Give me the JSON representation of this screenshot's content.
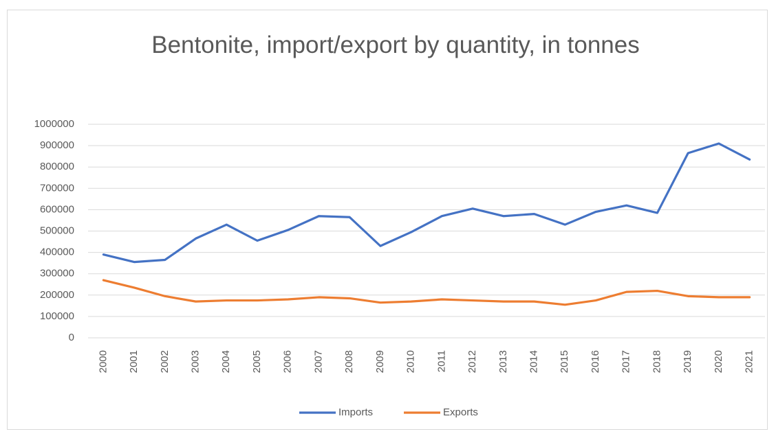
{
  "chart_data": {
    "type": "line",
    "title": "Bentonite, import/export by quantity, in tonnes",
    "categories": [
      "2000",
      "2001",
      "2002",
      "2003",
      "2004",
      "2005",
      "2006",
      "2007",
      "2008",
      "2009",
      "2010",
      "2011",
      "2012",
      "2013",
      "2014",
      "2015",
      "2016",
      "2017",
      "2018",
      "2019",
      "2020",
      "2021"
    ],
    "series": [
      {
        "name": "Imports",
        "color": "#4472c4",
        "values": [
          390000,
          355000,
          365000,
          465000,
          530000,
          455000,
          505000,
          570000,
          565000,
          430000,
          495000,
          570000,
          605000,
          570000,
          580000,
          530000,
          590000,
          620000,
          585000,
          865000,
          910000,
          835000
        ]
      },
      {
        "name": "Exports",
        "color": "#ed7d31",
        "values": [
          270000,
          235000,
          195000,
          170000,
          175000,
          175000,
          180000,
          190000,
          185000,
          165000,
          170000,
          180000,
          175000,
          170000,
          170000,
          155000,
          175000,
          215000,
          220000,
          195000,
          190000,
          190000
        ]
      }
    ],
    "ylim": [
      0,
      1000000
    ],
    "yticks": [
      0,
      100000,
      200000,
      300000,
      400000,
      500000,
      600000,
      700000,
      800000,
      900000,
      1000000
    ],
    "grid": true,
    "legend": "bottom"
  }
}
